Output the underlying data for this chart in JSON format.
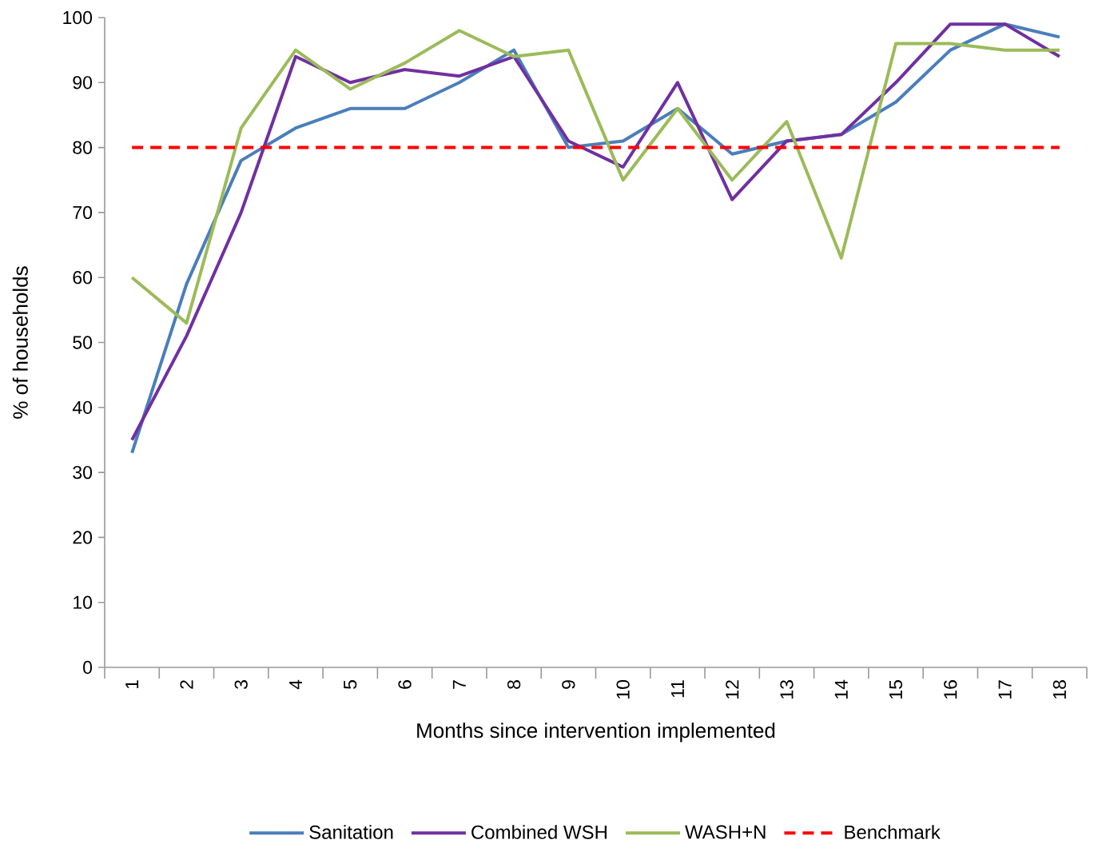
{
  "chart_data": {
    "type": "line",
    "xlabel": "Months since intervention implemented",
    "ylabel": "% of households",
    "categories": [
      "1",
      "2",
      "3",
      "4",
      "5",
      "6",
      "7",
      "8",
      "9",
      "10",
      "11",
      "12",
      "13",
      "14",
      "15",
      "16",
      "17",
      "18"
    ],
    "series": [
      {
        "name": "Sanitation",
        "color": "#4a7ebb",
        "values": [
          33,
          59,
          78,
          83,
          86,
          86,
          90,
          95,
          80,
          81,
          86,
          79,
          81,
          82,
          87,
          95,
          99,
          97
        ]
      },
      {
        "name": "Combined WSH",
        "color": "#7030a0",
        "values": [
          35,
          51,
          70,
          94,
          90,
          92,
          91,
          94,
          81,
          77,
          90,
          72,
          81,
          82,
          90,
          99,
          99,
          94
        ]
      },
      {
        "name": "WASH+N",
        "color": "#9bbb59",
        "values": [
          60,
          53,
          83,
          95,
          89,
          93,
          98,
          94,
          95,
          75,
          86,
          75,
          84,
          63,
          96,
          96,
          95,
          95
        ]
      }
    ],
    "ref_lines": [
      {
        "axis": "y",
        "value": 80,
        "label": "Benchmark",
        "color": "#ff0000",
        "line_style": "dashed"
      }
    ],
    "ylim": [
      0,
      100
    ],
    "yticks": [
      0,
      10,
      20,
      30,
      40,
      50,
      60,
      70,
      80,
      90,
      100
    ],
    "grid": false,
    "legend": "bottom",
    "marker": "none",
    "line_style": "solid"
  }
}
